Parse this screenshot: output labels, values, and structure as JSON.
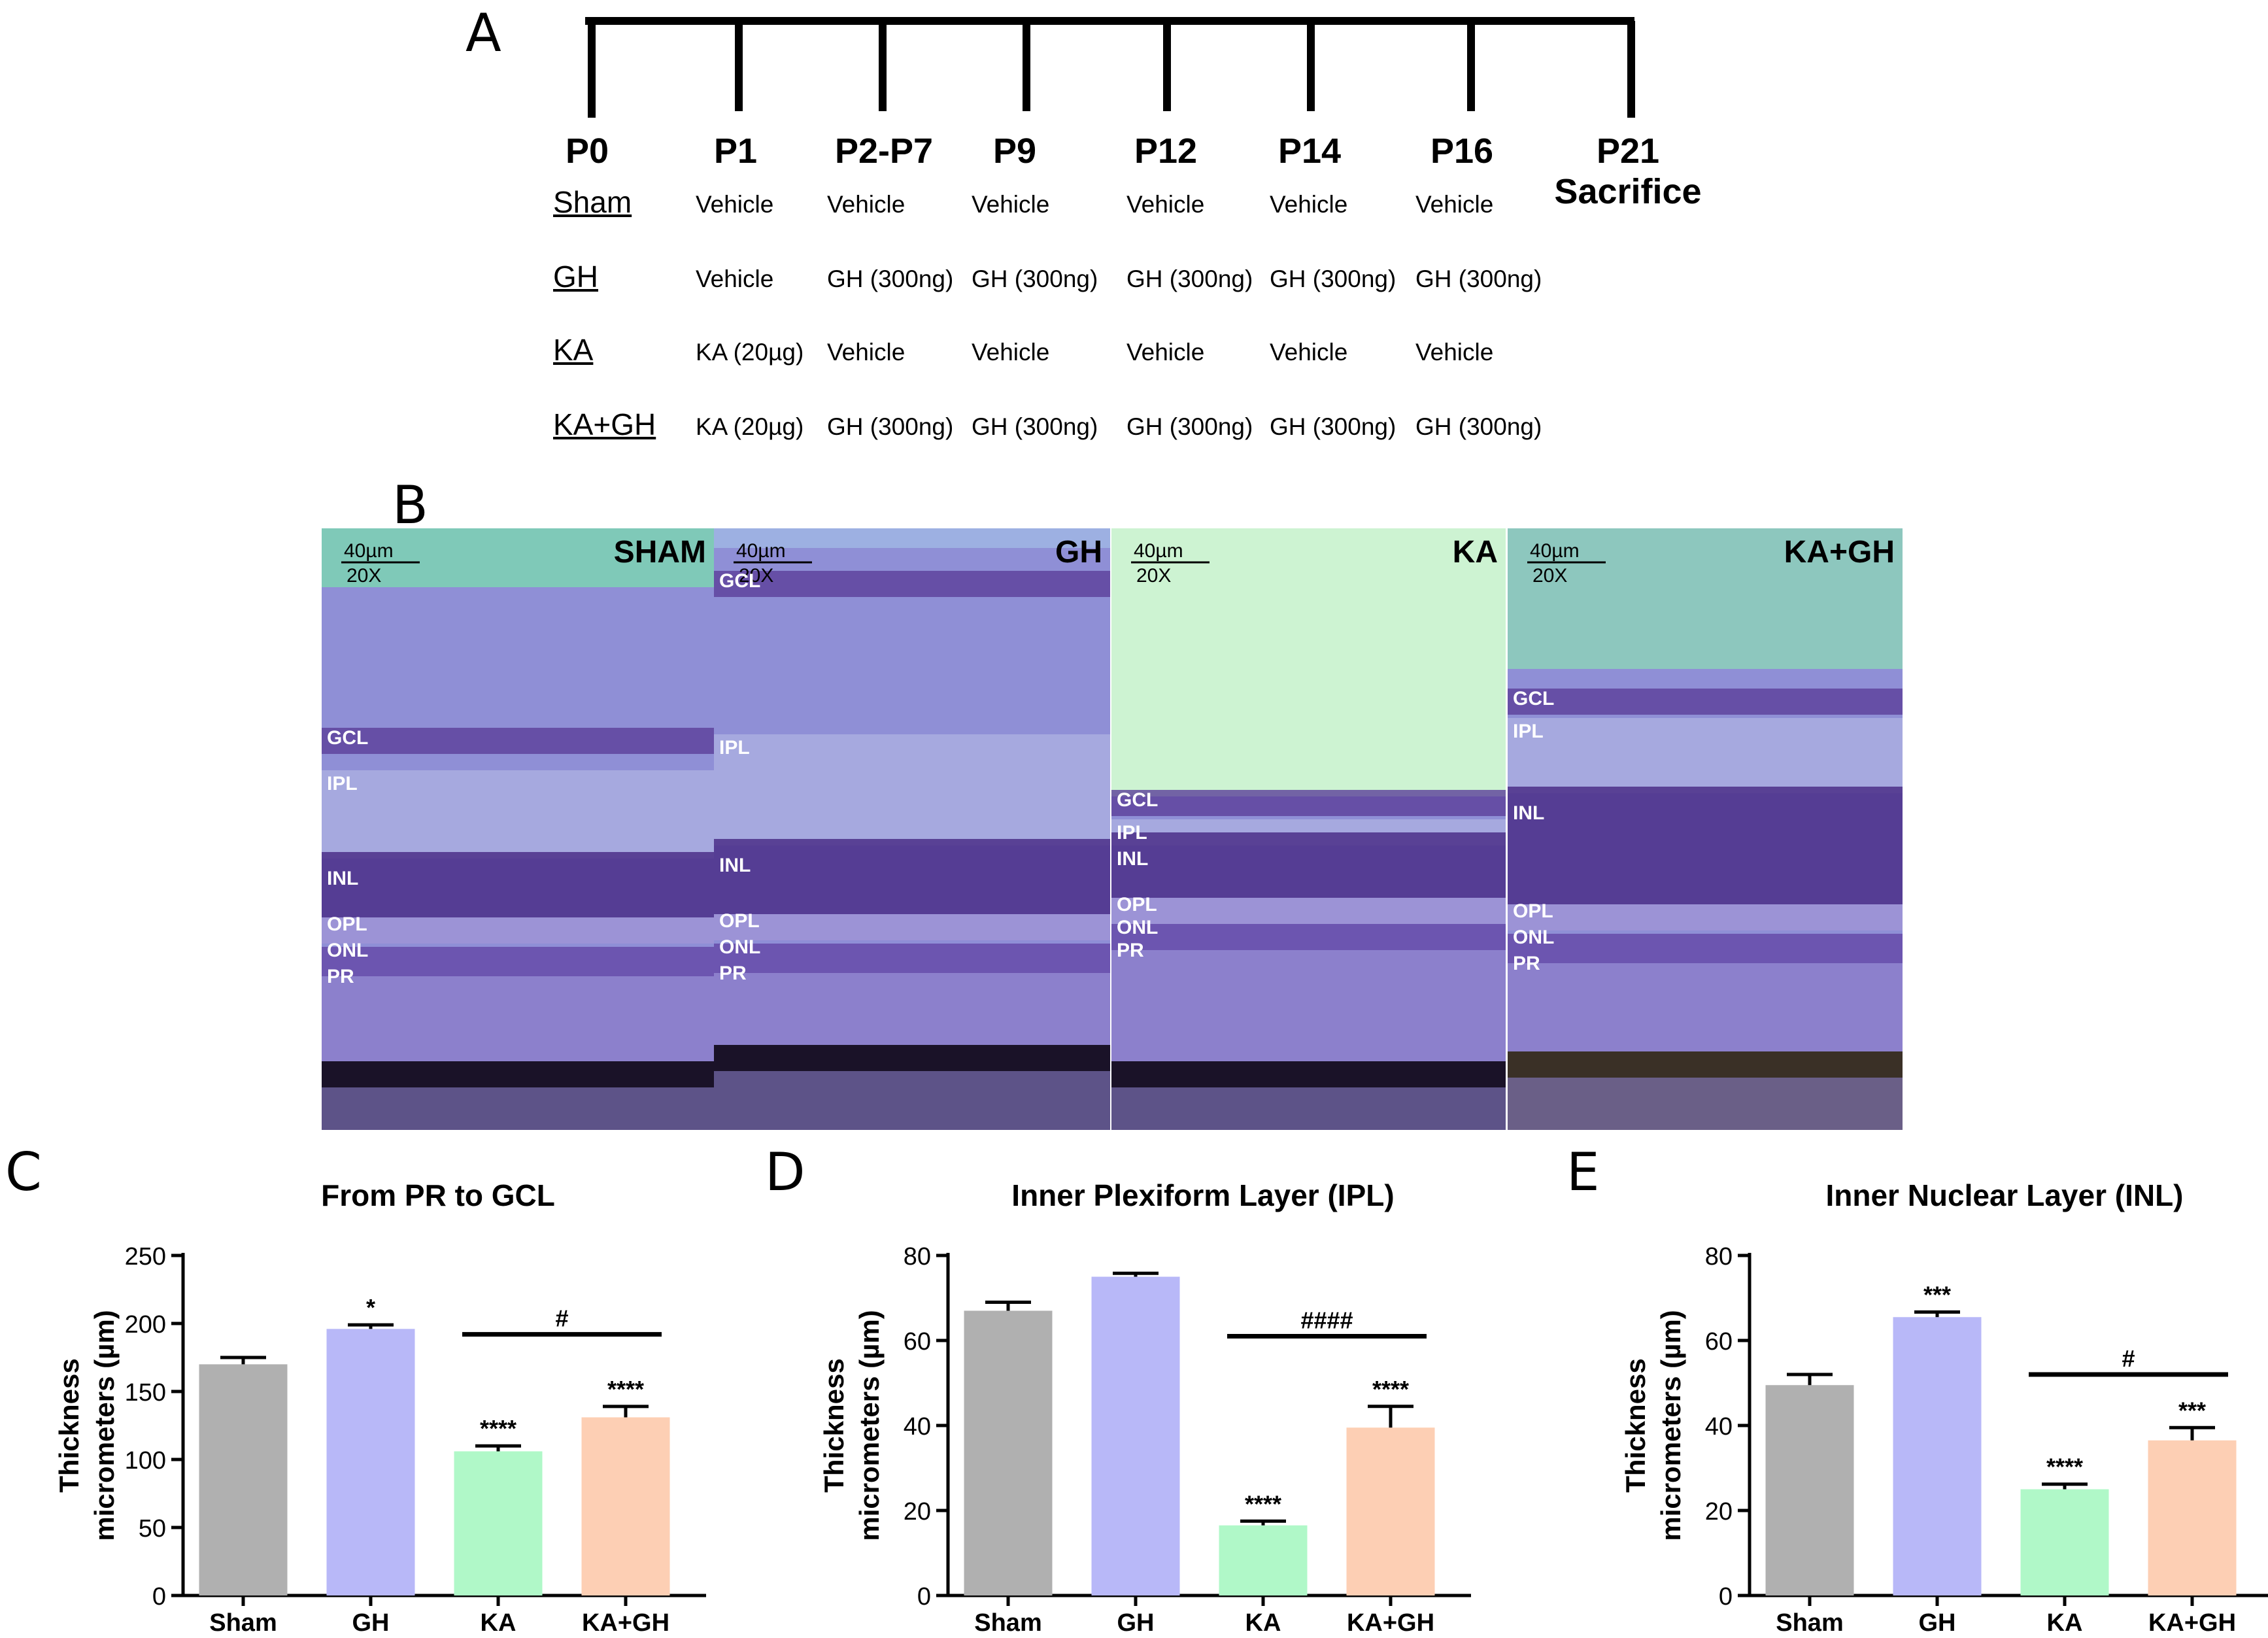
{
  "panels": {
    "A": "A",
    "B": "B",
    "C": "C",
    "D": "D",
    "E": "E"
  },
  "timeline": {
    "days": [
      "P0",
      "P1",
      "P2-P7",
      "P9",
      "P12",
      "P14",
      "P16",
      "P21"
    ],
    "end_label": "Sacrifice",
    "groups": [
      {
        "name": "Sham",
        "cells": [
          "Vehicle",
          "Vehicle",
          "Vehicle",
          "Vehicle",
          "Vehicle",
          "Vehicle"
        ]
      },
      {
        "name": "GH",
        "cells": [
          "Vehicle",
          "GH (300ng)",
          "GH (300ng)",
          "GH (300ng)",
          "GH (300ng)",
          "GH (300ng)"
        ]
      },
      {
        "name": "KA",
        "cells": [
          "KA (20µg)",
          "Vehicle",
          "Vehicle",
          "Vehicle",
          "Vehicle",
          "Vehicle"
        ]
      },
      {
        "name": "KA+GH",
        "cells": [
          "KA (20µg)",
          "GH (300ng)",
          "GH (300ng)",
          "GH (300ng)",
          "GH (300ng)",
          "GH (300ng)"
        ]
      }
    ]
  },
  "micrographs": [
    {
      "title": "SHAM",
      "scale": "40µm",
      "mag": "20X",
      "layers": [
        "GCL",
        "IPL",
        "INL",
        "OPL",
        "ONL",
        "PR"
      ]
    },
    {
      "title": "GH",
      "scale": "40µm",
      "mag": "20X",
      "layers": [
        "GCL",
        "IPL",
        "INL",
        "OPL",
        "ONL",
        "PR"
      ]
    },
    {
      "title": "KA",
      "scale": "40µm",
      "mag": "20X",
      "layers": [
        "GCL",
        "IPL",
        "INL",
        "OPL",
        "ONL",
        "PR"
      ]
    },
    {
      "title": "KA+GH",
      "scale": "40µm",
      "mag": "20X",
      "layers": [
        "GCL",
        "IPL",
        "INL",
        "OPL",
        "ONL",
        "PR"
      ]
    }
  ],
  "colors": {
    "Sham": "#b0b0b0",
    "GH": "#b8b8f8",
    "KA": "#b0f8c8",
    "KA+GH": "#fdcfb4"
  },
  "chart_data": [
    {
      "type": "bar",
      "title": "From PR to GCL",
      "ylabel_lines": [
        "Thickness",
        "micrometers (µm)"
      ],
      "categories": [
        "Sham",
        "GH",
        "KA",
        "KA+GH"
      ],
      "values": [
        170,
        196,
        106,
        131
      ],
      "errors": [
        5,
        3,
        4,
        8
      ],
      "ylim": [
        0,
        250
      ],
      "yticks": [
        0,
        50,
        100,
        150,
        200,
        250
      ],
      "stars": [
        "",
        "*",
        "****",
        "****"
      ],
      "bracket": {
        "from": 2,
        "to": 3,
        "label": "#",
        "y": 192
      }
    },
    {
      "type": "bar",
      "title": "Inner Plexiform Layer (IPL)",
      "ylabel_lines": [
        "Thickness",
        "micrometers (µm)"
      ],
      "categories": [
        "Sham",
        "GH",
        "KA",
        "KA+GH"
      ],
      "values": [
        67,
        75,
        16.5,
        39.5
      ],
      "errors": [
        2,
        0.8,
        1,
        5
      ],
      "ylim": [
        0,
        80
      ],
      "yticks": [
        0,
        20,
        40,
        60,
        80
      ],
      "stars": [
        "",
        "",
        "****",
        "****"
      ],
      "bracket": {
        "from": 2,
        "to": 3,
        "label": "####",
        "y": 61
      }
    },
    {
      "type": "bar",
      "title": "Inner Nuclear Layer (INL)",
      "ylabel_lines": [
        "Thickness",
        "micrometers (µm)"
      ],
      "categories": [
        "Sham",
        "GH",
        "KA",
        "KA+GH"
      ],
      "values": [
        49.5,
        65.5,
        25,
        36.5
      ],
      "errors": [
        2.5,
        1.2,
        1.2,
        3
      ],
      "ylim": [
        0,
        80
      ],
      "yticks": [
        0,
        20,
        40,
        60,
        80
      ],
      "stars": [
        "",
        "***",
        "****",
        "***"
      ],
      "bracket": {
        "from": 2,
        "to": 3,
        "label": "#",
        "y": 52
      }
    }
  ]
}
